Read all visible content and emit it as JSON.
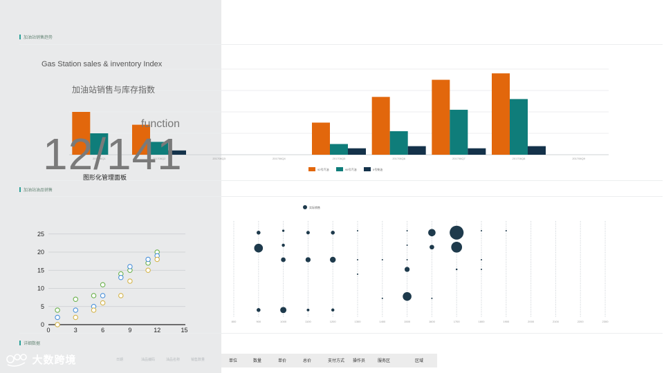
{
  "sections": {
    "top_label": "加油站销售趋势",
    "middle_label": "加油站油品销售",
    "bottom_label": "详细数据"
  },
  "overlay": {
    "title_en": "Gas Station sales & inventory Index",
    "title_cn": "加油站销售与库存指数",
    "function_label": "function",
    "counter": "12/141",
    "subtitle": "图形化管理面板"
  },
  "colors": {
    "orange": "#e2670c",
    "teal": "#0f7d7a",
    "navy": "#14324a",
    "bubble": "#1e3a4c"
  },
  "chart_data": [
    {
      "type": "bar",
      "categories": [
        "201706Q1",
        "201706Q2",
        "201706Q3",
        "201706Q4",
        "201706Q5",
        "201706Q6",
        "201706Q7",
        "201706Q8",
        "201706Q9"
      ],
      "series": [
        {
          "name": "92号汽油",
          "values": [
            20,
            14,
            0,
            0,
            15,
            27,
            35,
            38,
            0
          ]
        },
        {
          "name": "95号汽油",
          "values": [
            10,
            6,
            0,
            0,
            5,
            11,
            21,
            26,
            0
          ]
        },
        {
          "name": "0号柴油",
          "values": [
            0,
            2,
            0,
            0,
            3,
            4,
            3,
            4,
            0
          ]
        }
      ],
      "ylim": [
        0,
        40
      ]
    },
    {
      "type": "scatter",
      "xticks": [
        "0",
        "3",
        "6",
        "9",
        "12",
        "15"
      ],
      "yticks": [
        "0",
        "5",
        "10",
        "15",
        "20",
        "25"
      ],
      "xlim": [
        0,
        15
      ],
      "ylim": [
        0,
        25
      ],
      "series": [
        {
          "color": "#6ab04c",
          "points": [
            [
              1,
              4
            ],
            [
              3,
              7
            ],
            [
              5,
              8
            ],
            [
              6,
              11
            ],
            [
              8,
              14
            ],
            [
              9,
              15
            ],
            [
              11,
              17
            ],
            [
              12,
              20
            ]
          ]
        },
        {
          "color": "#4a90d9",
          "points": [
            [
              1,
              2
            ],
            [
              3,
              4
            ],
            [
              5,
              5
            ],
            [
              6,
              8
            ],
            [
              8,
              13
            ],
            [
              9,
              16
            ],
            [
              11,
              18
            ],
            [
              12,
              19
            ]
          ]
        },
        {
          "color": "#d4b44a",
          "points": [
            [
              1,
              0
            ],
            [
              3,
              2
            ],
            [
              5,
              4
            ],
            [
              6,
              6
            ],
            [
              8,
              8
            ],
            [
              9,
              12
            ],
            [
              11,
              15
            ],
            [
              12,
              18
            ]
          ]
        }
      ]
    },
    {
      "type": "scatter",
      "legend": "实际销售",
      "xticks": [
        "800",
        "900",
        "1000",
        "1100",
        "1200",
        "1300",
        "1400",
        "1500",
        "1600",
        "1700",
        "1800",
        "1900",
        "2000",
        "2100",
        "2200",
        "2300"
      ],
      "bubbles": [
        {
          "x": 1,
          "y": 0.88,
          "r": 2
        },
        {
          "x": 1,
          "y": 0.72,
          "r": 4.5
        },
        {
          "x": 1,
          "y": 0.08,
          "r": 2
        },
        {
          "x": 2,
          "y": 0.9,
          "r": 1.2
        },
        {
          "x": 2,
          "y": 0.75,
          "r": 1.6
        },
        {
          "x": 2,
          "y": 0.6,
          "r": 2.4
        },
        {
          "x": 2,
          "y": 0.08,
          "r": 3.2
        },
        {
          "x": 3,
          "y": 0.88,
          "r": 1.8
        },
        {
          "x": 3,
          "y": 0.6,
          "r": 2.6
        },
        {
          "x": 3,
          "y": 0.08,
          "r": 1.4
        },
        {
          "x": 4,
          "y": 0.88,
          "r": 2
        },
        {
          "x": 4,
          "y": 0.6,
          "r": 3
        },
        {
          "x": 4,
          "y": 0.08,
          "r": 1.6
        },
        {
          "x": 5,
          "y": 0.9,
          "r": 0.4
        },
        {
          "x": 5,
          "y": 0.6,
          "r": 0.6
        },
        {
          "x": 5,
          "y": 0.45,
          "r": 0.4
        },
        {
          "x": 6,
          "y": 0.6,
          "r": 0.4
        },
        {
          "x": 6,
          "y": 0.2,
          "r": 0.4
        },
        {
          "x": 7,
          "y": 0.9,
          "r": 0.4
        },
        {
          "x": 7,
          "y": 0.75,
          "r": 0.5
        },
        {
          "x": 7,
          "y": 0.6,
          "r": 0.6
        },
        {
          "x": 7,
          "y": 0.5,
          "r": 2.6
        },
        {
          "x": 7,
          "y": 0.22,
          "r": 4.5
        },
        {
          "x": 8,
          "y": 0.88,
          "r": 3.8
        },
        {
          "x": 8,
          "y": 0.73,
          "r": 2.4
        },
        {
          "x": 8,
          "y": 0.2,
          "r": 0.6
        },
        {
          "x": 9,
          "y": 0.88,
          "r": 7.2
        },
        {
          "x": 9,
          "y": 0.73,
          "r": 5.6
        },
        {
          "x": 9,
          "y": 0.5,
          "r": 0.9
        },
        {
          "x": 10,
          "y": 0.9,
          "r": 0.4
        },
        {
          "x": 10,
          "y": 0.6,
          "r": 0.4
        },
        {
          "x": 10,
          "y": 0.5,
          "r": 0.4
        },
        {
          "x": 11,
          "y": 0.9,
          "r": 0.6
        }
      ]
    }
  ],
  "table": {
    "headers_faint": [
      "日期",
      "油品编码",
      "油品名称",
      "销售数量"
    ],
    "headers": [
      "单位",
      "数量",
      "单价",
      "总价",
      "支付方式",
      "操作员",
      "服务区",
      "区域"
    ]
  },
  "logo": {
    "text": "大数跨境"
  }
}
